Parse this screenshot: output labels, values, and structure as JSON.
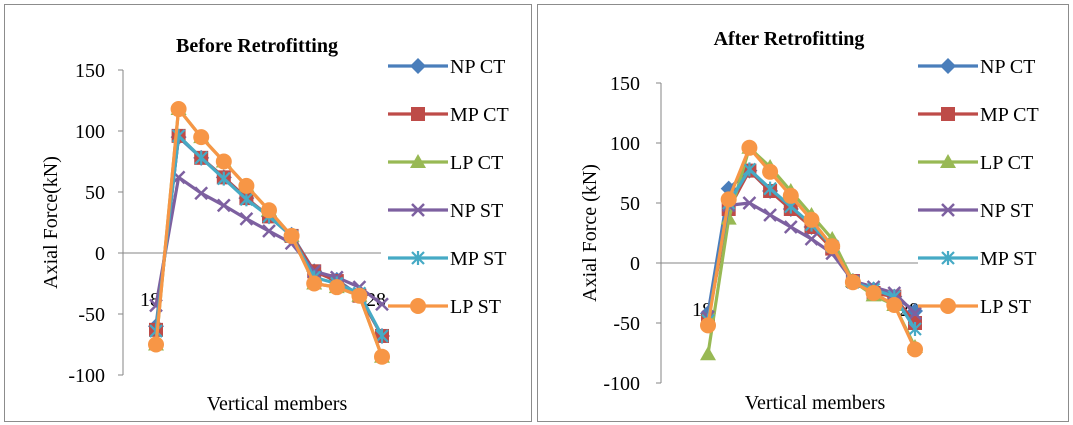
{
  "chart_data": [
    {
      "type": "line",
      "title": "Before Retrofitting",
      "xlabel": "Vertical members",
      "ylabel": "Axial Force(kN)",
      "ylim": [
        -100,
        150
      ],
      "yticks": [
        150,
        100,
        50,
        0,
        -50,
        -100
      ],
      "x_tick_labels": [
        {
          "x": 18,
          "label": "18"
        },
        {
          "x": 28,
          "label": "28"
        }
      ],
      "xlim": [
        18,
        28
      ],
      "grid": false,
      "legend": "right",
      "series": [
        {
          "name": "NP CT",
          "color": "#4a7ebb",
          "marker": "diamond",
          "x": [
            18,
            19,
            20,
            21,
            22,
            23,
            24,
            25,
            26,
            27,
            28
          ],
          "y": [
            -60,
            95,
            78,
            62,
            45,
            30,
            15,
            -15,
            -22,
            -35,
            -68
          ]
        },
        {
          "name": "MP CT",
          "color": "#be4b48",
          "marker": "square",
          "x": [
            18,
            19,
            20,
            21,
            22,
            23,
            24,
            25,
            26,
            27,
            28
          ],
          "y": [
            -63,
            96,
            78,
            62,
            45,
            30,
            14,
            -15,
            -23,
            -35,
            -68
          ]
        },
        {
          "name": "LP CT",
          "color": "#98b954",
          "marker": "triangle",
          "x": [
            18,
            19,
            20,
            21,
            22,
            23,
            24,
            25,
            26,
            27,
            28
          ],
          "y": [
            -75,
            118,
            95,
            75,
            55,
            35,
            14,
            -25,
            -28,
            -35,
            -85
          ]
        },
        {
          "name": "NP ST",
          "color": "#7d60a0",
          "marker": "x",
          "x": [
            18,
            19,
            20,
            21,
            22,
            23,
            24,
            25,
            26,
            27,
            28
          ],
          "y": [
            -43,
            62,
            49,
            39,
            28,
            18,
            8,
            -15,
            -20,
            -28,
            -42
          ]
        },
        {
          "name": "MP ST",
          "color": "#46aac5",
          "marker": "star",
          "x": [
            18,
            19,
            20,
            21,
            22,
            23,
            24,
            25,
            26,
            27,
            28
          ],
          "y": [
            -64,
            96,
            78,
            61,
            44,
            30,
            14,
            -20,
            -25,
            -33,
            -68
          ]
        },
        {
          "name": "LP ST",
          "color": "#f79646",
          "marker": "circle",
          "x": [
            18,
            19,
            20,
            21,
            22,
            23,
            24,
            25,
            26,
            27,
            28
          ],
          "y": [
            -75,
            118,
            95,
            75,
            55,
            35,
            14,
            -25,
            -28,
            -35,
            -85
          ]
        }
      ]
    },
    {
      "type": "line",
      "title": "After Retrofitting",
      "xlabel": "Vertical members",
      "ylabel": "Axial Force (kN)",
      "ylim": [
        -100,
        150
      ],
      "yticks": [
        150,
        100,
        50,
        0,
        -50,
        -100
      ],
      "x_tick_labels": [
        {
          "x": 18,
          "label": "18"
        },
        {
          "x": 28,
          "label": "28"
        }
      ],
      "xlim": [
        18,
        28
      ],
      "grid": false,
      "legend": "right",
      "series": [
        {
          "name": "NP CT",
          "color": "#4a7ebb",
          "marker": "diamond",
          "x": [
            18,
            19,
            20,
            21,
            22,
            23,
            24,
            25,
            26,
            27,
            28
          ],
          "y": [
            -42,
            62,
            77,
            60,
            45,
            30,
            12,
            -15,
            -22,
            -28,
            -40
          ]
        },
        {
          "name": "MP CT",
          "color": "#be4b48",
          "marker": "square",
          "x": [
            18,
            19,
            20,
            21,
            22,
            23,
            24,
            25,
            26,
            27,
            28
          ],
          "y": [
            -48,
            45,
            77,
            60,
            45,
            30,
            12,
            -15,
            -25,
            -28,
            -50
          ]
        },
        {
          "name": "LP CT",
          "color": "#98b954",
          "marker": "triangle",
          "x": [
            18,
            19,
            20,
            21,
            22,
            23,
            24,
            25,
            26,
            27,
            28
          ],
          "y": [
            -76,
            37,
            96,
            80,
            60,
            40,
            20,
            -15,
            -27,
            -35,
            -70
          ]
        },
        {
          "name": "NP ST",
          "color": "#7d60a0",
          "marker": "x",
          "x": [
            18,
            19,
            20,
            21,
            22,
            23,
            24,
            25,
            26,
            27,
            28
          ],
          "y": [
            -45,
            48,
            50,
            40,
            30,
            20,
            8,
            -15,
            -20,
            -25,
            -42
          ]
        },
        {
          "name": "MP ST",
          "color": "#46aac5",
          "marker": "star",
          "x": [
            18,
            19,
            20,
            21,
            22,
            23,
            24,
            25,
            26,
            27,
            28
          ],
          "y": [
            -48,
            50,
            78,
            62,
            47,
            32,
            14,
            -16,
            -22,
            -28,
            -55
          ]
        },
        {
          "name": "LP ST",
          "color": "#f79646",
          "marker": "circle",
          "x": [
            18,
            19,
            20,
            21,
            22,
            23,
            24,
            25,
            26,
            27,
            28
          ],
          "y": [
            -52,
            53,
            96,
            76,
            56,
            36,
            14,
            -16,
            -25,
            -35,
            -72
          ]
        }
      ]
    }
  ]
}
